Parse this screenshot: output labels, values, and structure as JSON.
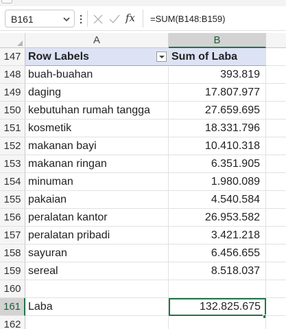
{
  "formula_bar": {
    "name_box": "B161",
    "formula": "=SUM(B148:B159)",
    "fx_label": "fx"
  },
  "columns": [
    "A",
    "B",
    ""
  ],
  "rows": [
    {
      "n": "147",
      "a": "Row Labels",
      "b": "Sum of Laba"
    },
    {
      "n": "148",
      "a": "buah-buahan",
      "b": "393.819"
    },
    {
      "n": "149",
      "a": "daging",
      "b": "17.807.977"
    },
    {
      "n": "150",
      "a": "kebutuhan rumah tangga",
      "b": "27.659.695"
    },
    {
      "n": "151",
      "a": "kosmetik",
      "b": "18.331.796"
    },
    {
      "n": "152",
      "a": "makanan bayi",
      "b": "10.410.318"
    },
    {
      "n": "153",
      "a": "makanan ringan",
      "b": "6.351.905"
    },
    {
      "n": "154",
      "a": "minuman",
      "b": "1.980.089"
    },
    {
      "n": "155",
      "a": "pakaian",
      "b": "4.540.584"
    },
    {
      "n": "156",
      "a": "peralatan kantor",
      "b": "26.953.582"
    },
    {
      "n": "157",
      "a": "peralatan pribadi",
      "b": "3.421.218"
    },
    {
      "n": "158",
      "a": "sayuran",
      "b": "6.456.655"
    },
    {
      "n": "159",
      "a": "sereal",
      "b": "8.518.037"
    },
    {
      "n": "160",
      "a": "",
      "b": ""
    },
    {
      "n": "161",
      "a": "Laba",
      "b": "132.825.675"
    },
    {
      "n": "162",
      "a": "",
      "b": ""
    }
  ],
  "colors": {
    "accent": "#217346",
    "pivot_header": "#dde3f5"
  }
}
